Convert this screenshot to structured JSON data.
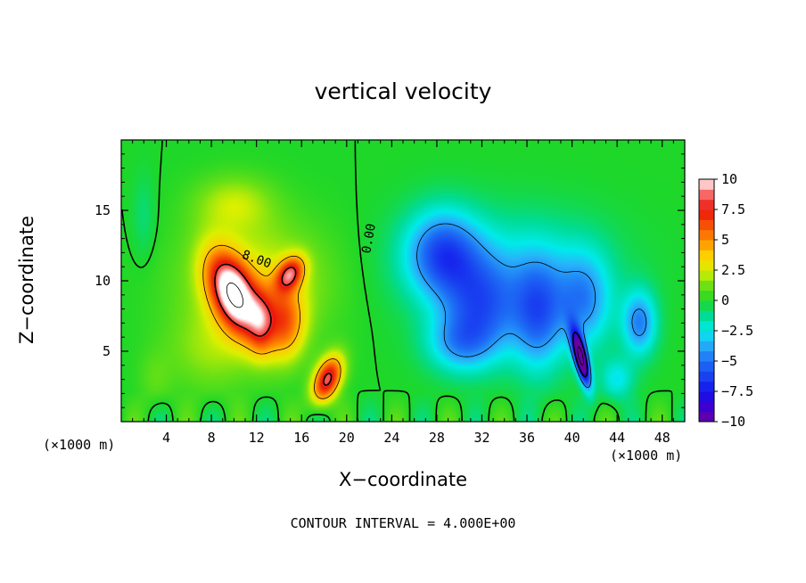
{
  "chart_data": {
    "type": "heatmap",
    "title": "vertical velocity",
    "xlabel": "X−coordinate",
    "ylabel": "Z−coordinate",
    "x_unit_note": "(×1000 m)",
    "footer": "CONTOUR INTERVAL = 4.000E+00",
    "xlim": [
      0,
      50
    ],
    "ylim": [
      0,
      20
    ],
    "x_ticks": [
      4,
      8,
      12,
      16,
      20,
      24,
      28,
      32,
      36,
      40,
      44,
      48
    ],
    "y_ticks": [
      5,
      10,
      15
    ],
    "colorbar": {
      "vmin": -10,
      "vmax": 10,
      "ticks": [
        10,
        7.5,
        5,
        2.5,
        0,
        -2.5,
        -5,
        -7.5,
        -10
      ],
      "tick_labels": [
        "10",
        "7.5",
        "5",
        "2.5",
        "0",
        "−2.5",
        "−5",
        "−7.5",
        "−10"
      ]
    },
    "contour_interval": 4,
    "contour_labels": [
      {
        "text": "8.00",
        "x": 12,
        "y": 11.5
      },
      {
        "text": "0.00",
        "x": 22,
        "y": 13
      }
    ],
    "features": [
      {
        "name": "updraft core",
        "x": 10,
        "z": 9,
        "w": 12
      },
      {
        "name": "secondary updraft",
        "x": 15,
        "z": 10.5,
        "w": 10
      },
      {
        "name": "low updraft",
        "x": 18,
        "z": 3,
        "w": 10
      },
      {
        "name": "downdraft region",
        "x": 30,
        "z": 10,
        "w": -5
      },
      {
        "name": "downdraft core",
        "x": 40.8,
        "z": 4.5,
        "w": -12
      }
    ]
  }
}
